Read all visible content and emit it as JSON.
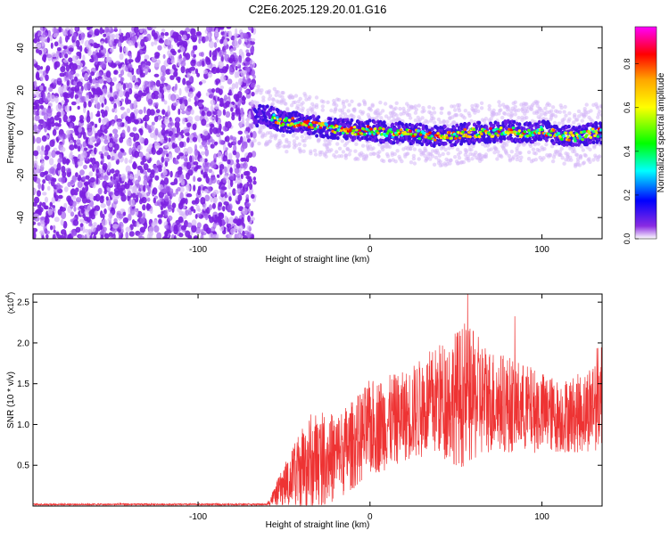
{
  "title": "C2E6.2025.129.20.01.G16",
  "spectrogram": {
    "type": "heatmap",
    "xlabel": "Height of straight line (km)",
    "ylabel": "Frequency (Hz)",
    "xlim": [
      -196,
      135
    ],
    "ylim": [
      -50,
      50
    ],
    "x_ticks": [
      -100,
      0,
      100
    ],
    "y_ticks": [
      -40,
      -20,
      0,
      20,
      40
    ],
    "colorbar": {
      "label": "Normalized spectral amplitude",
      "range": [
        0,
        0.97
      ],
      "ticks": [
        0,
        0.2,
        0.4,
        0.6,
        0.8
      ],
      "tick_labels": [
        "0.0",
        "0.2",
        "0.4",
        "0.6",
        "0.8"
      ],
      "colors": [
        "#ffffff",
        "#8a2be2",
        "#0000ff",
        "#00ffff",
        "#00ff00",
        "#ffff00",
        "#ffa500",
        "#ff0000",
        "#ff00ff"
      ]
    },
    "regions": [
      {
        "x_range": [
          -196,
          -67
        ],
        "description_level": 0.08,
        "freq_range": [
          -50,
          50
        ]
      },
      {
        "x_range": [
          -67,
          135
        ],
        "center_freq": 0,
        "spread_hz": 8,
        "peak_amplitude": 0.9
      }
    ],
    "signal_track": [
      {
        "x": -70,
        "f": 8
      },
      {
        "x": -60,
        "f": 8
      },
      {
        "x": -50,
        "f": 5
      },
      {
        "x": -40,
        "f": 5
      },
      {
        "x": -30,
        "f": 3
      },
      {
        "x": -20,
        "f": 2
      },
      {
        "x": -10,
        "f": 1
      },
      {
        "x": 0,
        "f": 1
      },
      {
        "x": 10,
        "f": 0
      },
      {
        "x": 20,
        "f": 0
      },
      {
        "x": 30,
        "f": -1
      },
      {
        "x": 40,
        "f": -2
      },
      {
        "x": 50,
        "f": -1
      },
      {
        "x": 60,
        "f": 0
      },
      {
        "x": 70,
        "f": 0
      },
      {
        "x": 80,
        "f": 1
      },
      {
        "x": 90,
        "f": 0
      },
      {
        "x": 100,
        "f": 1
      },
      {
        "x": 110,
        "f": -1
      },
      {
        "x": 120,
        "f": -2
      },
      {
        "x": 130,
        "f": 0
      }
    ]
  },
  "chart_data": {
    "type": "line",
    "xlabel": "Height of straight line (km)",
    "ylabel": "SNR (10 * v/v)",
    "y_scale_label": "(x10",
    "y_scale_exponent": "4",
    "xlim": [
      -196,
      135
    ],
    "ylim": [
      0,
      2.6
    ],
    "x_ticks": [
      -100,
      0,
      100
    ],
    "y_ticks": [
      0.5,
      1.0,
      1.5,
      2.0,
      2.5
    ],
    "y_tick_labels": [
      "0.5",
      "1.0",
      "1.5",
      "2.0",
      "2.5"
    ],
    "line_color": "#ee3333",
    "envelope": [
      {
        "x": -196,
        "mean": 0.02,
        "amp": 0.01
      },
      {
        "x": -60,
        "mean": 0.02,
        "amp": 0.01
      },
      {
        "x": -50,
        "mean": 0.25,
        "amp": 0.25
      },
      {
        "x": -35,
        "mean": 0.55,
        "amp": 0.6
      },
      {
        "x": -20,
        "mean": 0.6,
        "amp": 0.55
      },
      {
        "x": -10,
        "mean": 0.75,
        "amp": 0.55
      },
      {
        "x": 0,
        "mean": 0.95,
        "amp": 0.6
      },
      {
        "x": 20,
        "mean": 1.1,
        "amp": 0.55
      },
      {
        "x": 40,
        "mean": 1.3,
        "amp": 0.7
      },
      {
        "x": 55,
        "mean": 1.35,
        "amp": 0.9
      },
      {
        "x": 70,
        "mean": 1.3,
        "amp": 0.65
      },
      {
        "x": 90,
        "mean": 1.2,
        "amp": 0.55
      },
      {
        "x": 110,
        "mean": 1.1,
        "amp": 0.45
      },
      {
        "x": 125,
        "mean": 1.15,
        "amp": 0.5
      },
      {
        "x": 135,
        "mean": 1.4,
        "amp": 0.7
      }
    ]
  }
}
